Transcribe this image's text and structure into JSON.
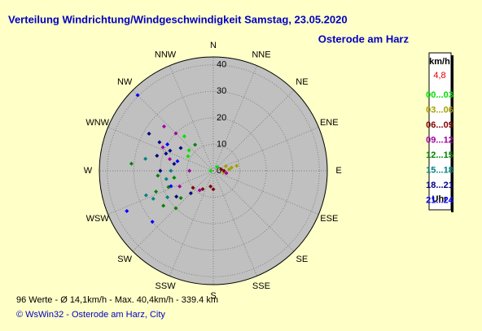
{
  "chart_data": {
    "type": "polar-scatter",
    "title": "Verteilung Windrichtung/Windgeschwindigkeit  Samstag, 23.05.2020",
    "subtitle": "Osterode am Harz",
    "directions_labels": [
      "N",
      "NNE",
      "NE",
      "ENE",
      "E",
      "ESE",
      "SE",
      "SSE",
      "S",
      "SSW",
      "SW",
      "WSW",
      "W",
      "WNW",
      "NW",
      "NNW"
    ],
    "rlim": [
      0,
      43
    ],
    "rticks": [
      0,
      10,
      20,
      30,
      40
    ],
    "legend_title": "km/h",
    "legend_value": "4,8",
    "legend_unit": "Uhr",
    "series": [
      {
        "name": "00...03",
        "color": "#00e000",
        "direction": [
          320,
          310,
          300,
          45,
          270
        ],
        "values": [
          17,
          12,
          11,
          2,
          1
        ]
      },
      {
        "name": "03...06",
        "color": "#a0a000",
        "direction": [
          80,
          78,
          85,
          70,
          100
        ],
        "values": [
          7,
          9,
          6,
          5,
          4
        ]
      },
      {
        "name": "06...09",
        "color": "#800000",
        "direction": [
          190,
          180,
          210,
          90,
          80,
          230
        ],
        "values": [
          6,
          7,
          8,
          4,
          3,
          10
        ]
      },
      {
        "name": "09...12",
        "color": "#a000a0",
        "direction": [
          295,
          315,
          312,
          270,
          215,
          100,
          285,
          245
        ],
        "values": [
          21,
          20,
          25,
          9,
          9,
          5,
          17,
          14
        ]
      },
      {
        "name": "12...15",
        "color": "#008000",
        "direction": [
          275,
          250,
          235,
          225,
          230,
          250,
          265,
          260,
          325
        ],
        "values": [
          31,
          23,
          23,
          20,
          16,
          18,
          21,
          15,
          12
        ]
      },
      {
        "name": "15...18",
        "color": "#008080",
        "direction": [
          250,
          245,
          240,
          270,
          280,
          260
        ],
        "values": [
          27,
          25,
          20,
          16,
          26,
          18
        ]
      },
      {
        "name": "18...21",
        "color": "#000080",
        "direction": [
          300,
          298,
          290,
          280,
          225,
          295,
          270,
          285,
          305,
          235
        ],
        "values": [
          28,
          23,
          19,
          15,
          12,
          18,
          20,
          22,
          15,
          17
        ]
      },
      {
        "name": "21...24",
        "color": "#0000ff",
        "direction": [
          315,
          245,
          230,
          285,
          300,
          250
        ],
        "values": [
          40.4,
          36,
          30,
          14,
          20,
          17
        ]
      }
    ],
    "footer": "96 Werte   -   Ø 14,1km/h  -  Max. 40,4km/h  -  339.4 km",
    "copyright": "© WsWin32  -  Osterode am Harz, City"
  }
}
